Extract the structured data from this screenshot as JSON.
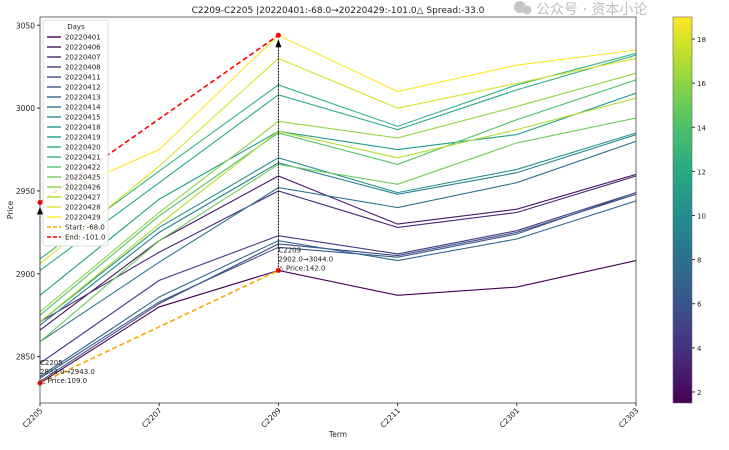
{
  "chart_data": {
    "type": "line",
    "title": "C2209-C2205 |20220401:-68.0→20220429:-101.0△ Spread:-33.0",
    "xlabel": "Term",
    "ylabel": "Price",
    "categories": [
      "C2205",
      "C2207",
      "C2209",
      "C2211",
      "C2301",
      "C2303"
    ],
    "ylim": [
      2822,
      3055
    ],
    "yticks": [
      2850,
      2900,
      2950,
      3000,
      3050
    ],
    "grid": false,
    "legend": {
      "title": "Days",
      "placement": "top-left"
    },
    "colormap": "viridis",
    "colorbar": {
      "range": [
        1.5,
        19
      ],
      "ticks": [
        2,
        4,
        6,
        8,
        10,
        12,
        14,
        16,
        18
      ]
    },
    "series": [
      {
        "name": "20220401",
        "values": [
          2834,
          2880,
          2902,
          2887,
          2892,
          2908
        ]
      },
      {
        "name": "20220406",
        "values": [
          2866,
          2920,
          2959,
          2930,
          2939,
          2960
        ]
      },
      {
        "name": "20220407",
        "values": [
          2871,
          2913,
          2950,
          2928,
          2937,
          2959
        ]
      },
      {
        "name": "20220408",
        "values": [
          2846,
          2896,
          2923,
          2912,
          2926,
          2949
        ]
      },
      {
        "name": "20220411",
        "values": [
          2835,
          2882,
          2918,
          2911,
          2925,
          2948
        ]
      },
      {
        "name": "20220412",
        "values": [
          2837,
          2883,
          2916,
          2910,
          2924,
          2949
        ]
      },
      {
        "name": "20220413",
        "values": [
          2838,
          2886,
          2920,
          2908,
          2921,
          2944
        ]
      },
      {
        "name": "20220414",
        "values": [
          2859,
          2907,
          2952,
          2940,
          2955,
          2980
        ]
      },
      {
        "name": "20220415",
        "values": [
          2869,
          2925,
          2967,
          2948,
          2961,
          2984
        ]
      },
      {
        "name": "20220418",
        "values": [
          2871,
          2928,
          2970,
          2949,
          2963,
          2985
        ]
      },
      {
        "name": "20220419",
        "values": [
          2887,
          2945,
          2986,
          2975,
          2984,
          3009
        ]
      },
      {
        "name": "20220420",
        "values": [
          2902,
          2955,
          3008,
          2987,
          3011,
          3032
        ]
      },
      {
        "name": "20220421",
        "values": [
          2909,
          2962,
          3014,
          2989,
          3014,
          3033
        ]
      },
      {
        "name": "20220422",
        "values": [
          2875,
          2935,
          2985,
          2966,
          2993,
          3017
        ]
      },
      {
        "name": "20220425",
        "values": [
          2859,
          2920,
          2966,
          2954,
          2979,
          2994
        ]
      },
      {
        "name": "20220426",
        "values": [
          2877,
          2937,
          2992,
          2982,
          3001,
          3021
        ]
      },
      {
        "name": "20220427",
        "values": [
          2871,
          2930,
          2986,
          2970,
          2987,
          3006
        ]
      },
      {
        "name": "20220428",
        "values": [
          2906,
          2965,
          3030,
          3000,
          3015,
          3030
        ]
      },
      {
        "name": "20220429",
        "values": [
          2943,
          2975,
          3044,
          3010,
          3026,
          3035
        ]
      }
    ],
    "spread_lines": [
      {
        "name": "Start: -68.0",
        "from": [
          "C2205",
          2834
        ],
        "to": [
          "C2209",
          2902
        ],
        "color": "#ffa500"
      },
      {
        "name": "End: -101.0",
        "from": [
          "C2205",
          2943
        ],
        "to": [
          "C2209",
          3044
        ],
        "color": "#ff0000"
      }
    ],
    "annotations": [
      {
        "term": "C2205",
        "lines": [
          "C2205",
          "2834.0→2943.0",
          "△ Price:109.0"
        ],
        "from": 2834,
        "to": 2943
      },
      {
        "term": "C2209",
        "lines": [
          "C2209",
          "2902.0→3044.0",
          "△ Price:142.0"
        ],
        "from": 2902,
        "to": 3044
      }
    ]
  },
  "watermark": "公众号 · 资本小论"
}
